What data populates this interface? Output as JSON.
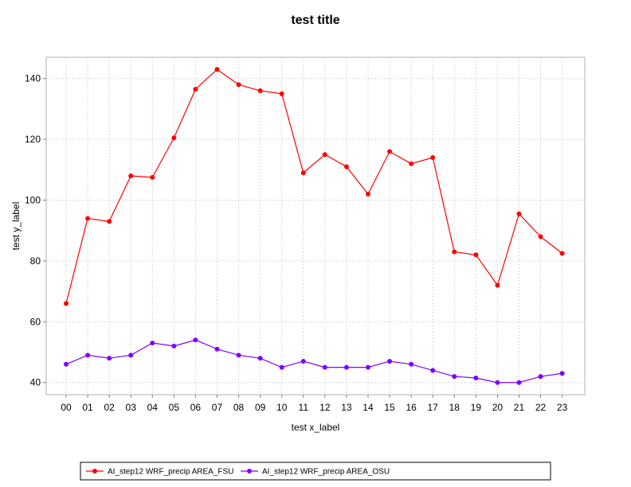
{
  "chart_data": {
    "type": "line",
    "title": "test title",
    "xlabel": "test x_label",
    "ylabel": "test y_label",
    "categories": [
      "00",
      "01",
      "02",
      "03",
      "04",
      "05",
      "06",
      "07",
      "08",
      "09",
      "10",
      "11",
      "12",
      "13",
      "14",
      "15",
      "16",
      "17",
      "18",
      "19",
      "20",
      "21",
      "22",
      "23"
    ],
    "ylim": [
      36,
      147
    ],
    "yticks": [
      40,
      60,
      80,
      100,
      120,
      140
    ],
    "grid": true,
    "legend_position": "bottom",
    "series": [
      {
        "name": "AI_step12 WRF_precip AREA_FSU",
        "color": "#ff0000",
        "values": [
          66,
          94,
          93,
          108,
          107.5,
          120.5,
          136.5,
          143,
          138,
          136,
          135,
          109,
          115,
          111,
          102,
          116,
          112,
          114,
          83,
          82,
          72,
          95.5,
          88,
          82.5
        ]
      },
      {
        "name": "AI_step12 WRF_precip AREA_OSU",
        "color": "#8000ff",
        "values": [
          46,
          49,
          48,
          49,
          53,
          52,
          54,
          51,
          49,
          48,
          45,
          47,
          45,
          45,
          45,
          47,
          46,
          44,
          42,
          41.5,
          40,
          40,
          42,
          43
        ]
      }
    ]
  }
}
